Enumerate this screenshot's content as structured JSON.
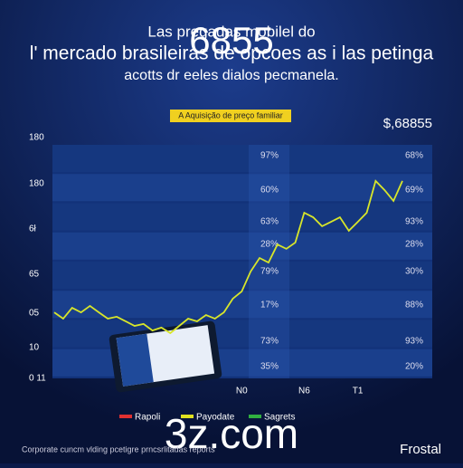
{
  "header": {
    "line1": "Las pregadas mobilel do",
    "overlay": "6855",
    "line2": "l' mercado brasileiras de opcoes as i las petinga",
    "line3": "acotts dr eeles dialos pecmanela."
  },
  "badge": "A Aquisição de preço familiar",
  "price": "$,68855",
  "chart_data": {
    "type": "line",
    "color": "#d8e62a",
    "categories": [
      null,
      null,
      null,
      null,
      null,
      null,
      null,
      null,
      null,
      null,
      null,
      null,
      null,
      null,
      null,
      null,
      null,
      null,
      null,
      null,
      null,
      "N0",
      null,
      null,
      null,
      null,
      null,
      null,
      "N6",
      null,
      null,
      null,
      null,
      null,
      "T1",
      null,
      null,
      null,
      null,
      null
    ],
    "values": [
      27.4,
      24.8,
      29.3,
      27.4,
      30.1,
      27.4,
      24.8,
      25.6,
      23.7,
      21.8,
      22.6,
      19.9,
      21.1,
      18.8,
      21.8,
      24.8,
      23.7,
      26.3,
      24.8,
      27.4,
      33.1,
      36.1,
      44.4,
      50.0,
      48.1,
      55.6,
      53.8,
      56.4,
      68.8,
      66.9,
      63.2,
      65.0,
      66.9,
      61.3,
      65.0,
      68.8,
      82.0,
      78.2,
      73.7,
      82.0
    ],
    "ylim": [
      0,
      100
    ]
  },
  "left_labels": [
    "180",
    "180",
    "6ł",
    "65",
    "05",
    "10",
    "0 11"
  ],
  "middle_column": [
    "97%",
    "60%",
    "63%",
    "28%",
    "79%",
    "17%",
    "73%",
    "35%"
  ],
  "right_column": [
    "68%",
    "69%",
    "93%",
    "28%",
    "30%",
    "88%",
    "93%",
    "20%"
  ],
  "legend": [
    {
      "label": "Rapoli",
      "color": "#e03030"
    },
    {
      "label": "Payodate",
      "color": "#e0e020"
    },
    {
      "label": "Sagrets",
      "color": "#30b040"
    }
  ],
  "watermark": "3z.com",
  "footer_left": "Corporate cuncm vlding pcetigre prncsrlitadas reports",
  "footer_right": "Frostal"
}
